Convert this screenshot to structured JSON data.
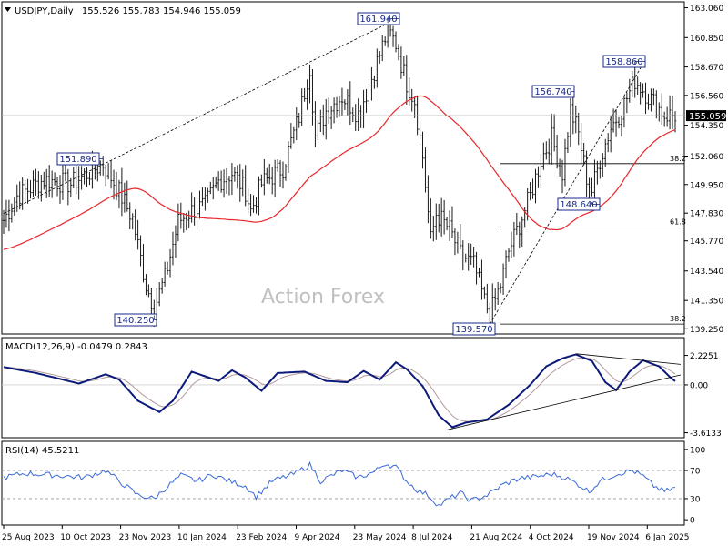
{
  "chart_data": [
    {
      "type": "ohlc",
      "title": "USDJPY,Daily",
      "ohlc_readout": "155.526 155.783 154.946 155.059",
      "price_label": "155.059",
      "watermark": "Action Forex",
      "y_ticks": [
        "163.060",
        "160.850",
        "158.670",
        "156.560",
        "154.350",
        "152.060",
        "149.950",
        "147.830",
        "145.770",
        "143.540",
        "141.350",
        "139.250"
      ],
      "y_tick_values": [
        163.06,
        160.85,
        158.67,
        156.56,
        154.35,
        152.06,
        149.95,
        147.83,
        145.77,
        143.54,
        141.35,
        139.25
      ],
      "ylim": [
        139.0,
        163.3
      ],
      "x_ticks": [
        "25 Aug 2023",
        "10 Oct 2023",
        "23 Nov 2023",
        "10 Jan 2024",
        "23 Feb 2024",
        "9 Apr 2024",
        "23 May 2024",
        "8 Jul 2024",
        "21 Aug 2024",
        "4 Oct 2024",
        "19 Nov 2024",
        "6 Jan 2025"
      ],
      "annotations": [
        {
          "label": "161.940",
          "value": 161.94,
          "bar": 143
        },
        {
          "label": "151.890",
          "value": 151.89,
          "bar": 37
        },
        {
          "label": "140.250",
          "value": 140.25,
          "bar": 56
        },
        {
          "label": "156.740",
          "value": 156.74,
          "bar": 211
        },
        {
          "label": "158.860",
          "value": 158.86,
          "bar": 235
        },
        {
          "label": "148.640",
          "value": 148.64,
          "bar": 219
        },
        {
          "label": "139.570",
          "value": 139.57,
          "bar": 181
        }
      ],
      "fib_levels": [
        {
          "label": "38.2",
          "value": 151.5
        },
        {
          "label": "61.8",
          "value": 146.8
        },
        {
          "label": "38.2",
          "value": 139.6
        }
      ],
      "anchors": [
        [
          0,
          147.3
        ],
        [
          5,
          149.1
        ],
        [
          15,
          150.3
        ],
        [
          25,
          150.0
        ],
        [
          37,
          151.5
        ],
        [
          42,
          149.8
        ],
        [
          48,
          147.4
        ],
        [
          53,
          142.5
        ],
        [
          56,
          140.8
        ],
        [
          60,
          143.0
        ],
        [
          65,
          147.2
        ],
        [
          70,
          148.0
        ],
        [
          75,
          148.4
        ],
        [
          80,
          150.2
        ],
        [
          85,
          150.8
        ],
        [
          90,
          149.5
        ],
        [
          92,
          148.0
        ],
        [
          96,
          150.0
        ],
        [
          104,
          151.2
        ],
        [
          110,
          155.0
        ],
        [
          114,
          158.7
        ],
        [
          116,
          153.5
        ],
        [
          120,
          155.4
        ],
        [
          126,
          156.5
        ],
        [
          132,
          155.2
        ],
        [
          136,
          157.3
        ],
        [
          140,
          159.6
        ],
        [
          143,
          161.4
        ],
        [
          146,
          160.4
        ],
        [
          150,
          157.5
        ],
        [
          153,
          156.2
        ],
        [
          156,
          152.0
        ],
        [
          159,
          145.8
        ],
        [
          161,
          147.8
        ],
        [
          166,
          146.6
        ],
        [
          170,
          144.8
        ],
        [
          175,
          144.0
        ],
        [
          179,
          141.3
        ],
        [
          181,
          140.3
        ],
        [
          185,
          142.5
        ],
        [
          188,
          145.0
        ],
        [
          192,
          147.0
        ],
        [
          196,
          149.1
        ],
        [
          200,
          151.8
        ],
        [
          204,
          153.4
        ],
        [
          208,
          150.8
        ],
        [
          211,
          155.5
        ],
        [
          214,
          153.7
        ],
        [
          217,
          150.5
        ],
        [
          219,
          149.5
        ],
        [
          222,
          151.8
        ],
        [
          226,
          154.2
        ],
        [
          230,
          155.5
        ],
        [
          235,
          157.7
        ],
        [
          238,
          157.0
        ],
        [
          240,
          156.5
        ],
        [
          244,
          155.6
        ],
        [
          246,
          155.1
        ]
      ]
    },
    {
      "type": "line",
      "title": "MACD(12,26,9) -0.0479 0.2843",
      "y_ticks": [
        "2.2251",
        "0.00",
        "-3.6133"
      ],
      "y_tick_values": [
        2.2251,
        0.0,
        -3.6133
      ],
      "ylim": [
        -3.85,
        2.95
      ],
      "macd_anchors": [
        [
          0,
          1.35
        ],
        [
          12,
          0.9
        ],
        [
          28,
          0.1
        ],
        [
          38,
          0.8
        ],
        [
          43,
          0.4
        ],
        [
          50,
          -1.2
        ],
        [
          58,
          -2.05
        ],
        [
          63,
          -1.2
        ],
        [
          70,
          1.0
        ],
        [
          80,
          0.3
        ],
        [
          85,
          1.1
        ],
        [
          90,
          0.55
        ],
        [
          96,
          -0.45
        ],
        [
          102,
          0.9
        ],
        [
          112,
          1.0
        ],
        [
          120,
          0.3
        ],
        [
          128,
          0.2
        ],
        [
          134,
          1.05
        ],
        [
          140,
          0.4
        ],
        [
          146,
          1.7
        ],
        [
          150,
          1.2
        ],
        [
          156,
          -0.1
        ],
        [
          162,
          -2.3
        ],
        [
          167,
          -3.2
        ],
        [
          172,
          -2.85
        ],
        [
          180,
          -2.6
        ],
        [
          188,
          -1.5
        ],
        [
          196,
          0.0
        ],
        [
          202,
          1.4
        ],
        [
          208,
          2.0
        ],
        [
          213,
          2.3
        ],
        [
          219,
          1.8
        ],
        [
          224,
          0.2
        ],
        [
          228,
          -0.4
        ],
        [
          233,
          1.0
        ],
        [
          238,
          1.85
        ],
        [
          244,
          1.4
        ],
        [
          248,
          0.6
        ],
        [
          252,
          -0.05
        ]
      ]
    },
    {
      "type": "line",
      "title": "RSI(14) 45.5211",
      "y_ticks": [
        "100",
        "70",
        "30",
        "0"
      ],
      "y_tick_values": [
        100,
        70,
        30,
        0
      ],
      "ylim": [
        -5,
        105
      ],
      "reference_lines": [
        70,
        30
      ],
      "rsi_anchors": [
        [
          0,
          60
        ],
        [
          8,
          66
        ],
        [
          20,
          63
        ],
        [
          30,
          60
        ],
        [
          38,
          70
        ],
        [
          44,
          52
        ],
        [
          50,
          35
        ],
        [
          56,
          30
        ],
        [
          60,
          44
        ],
        [
          66,
          63
        ],
        [
          72,
          55
        ],
        [
          78,
          64
        ],
        [
          84,
          55
        ],
        [
          90,
          48
        ],
        [
          94,
          33
        ],
        [
          100,
          55
        ],
        [
          108,
          65
        ],
        [
          114,
          78
        ],
        [
          118,
          55
        ],
        [
          126,
          70
        ],
        [
          132,
          60
        ],
        [
          138,
          68
        ],
        [
          142,
          80
        ],
        [
          146,
          75
        ],
        [
          150,
          55
        ],
        [
          154,
          42
        ],
        [
          158,
          35
        ],
        [
          162,
          20
        ],
        [
          166,
          30
        ],
        [
          170,
          38
        ],
        [
          174,
          27
        ],
        [
          180,
          35
        ],
        [
          186,
          50
        ],
        [
          192,
          59
        ],
        [
          198,
          61
        ],
        [
          204,
          65
        ],
        [
          209,
          60
        ],
        [
          214,
          50
        ],
        [
          218,
          40
        ],
        [
          222,
          55
        ],
        [
          228,
          65
        ],
        [
          234,
          70
        ],
        [
          238,
          62
        ],
        [
          242,
          48
        ],
        [
          246,
          40
        ],
        [
          250,
          45.5
        ]
      ]
    }
  ]
}
